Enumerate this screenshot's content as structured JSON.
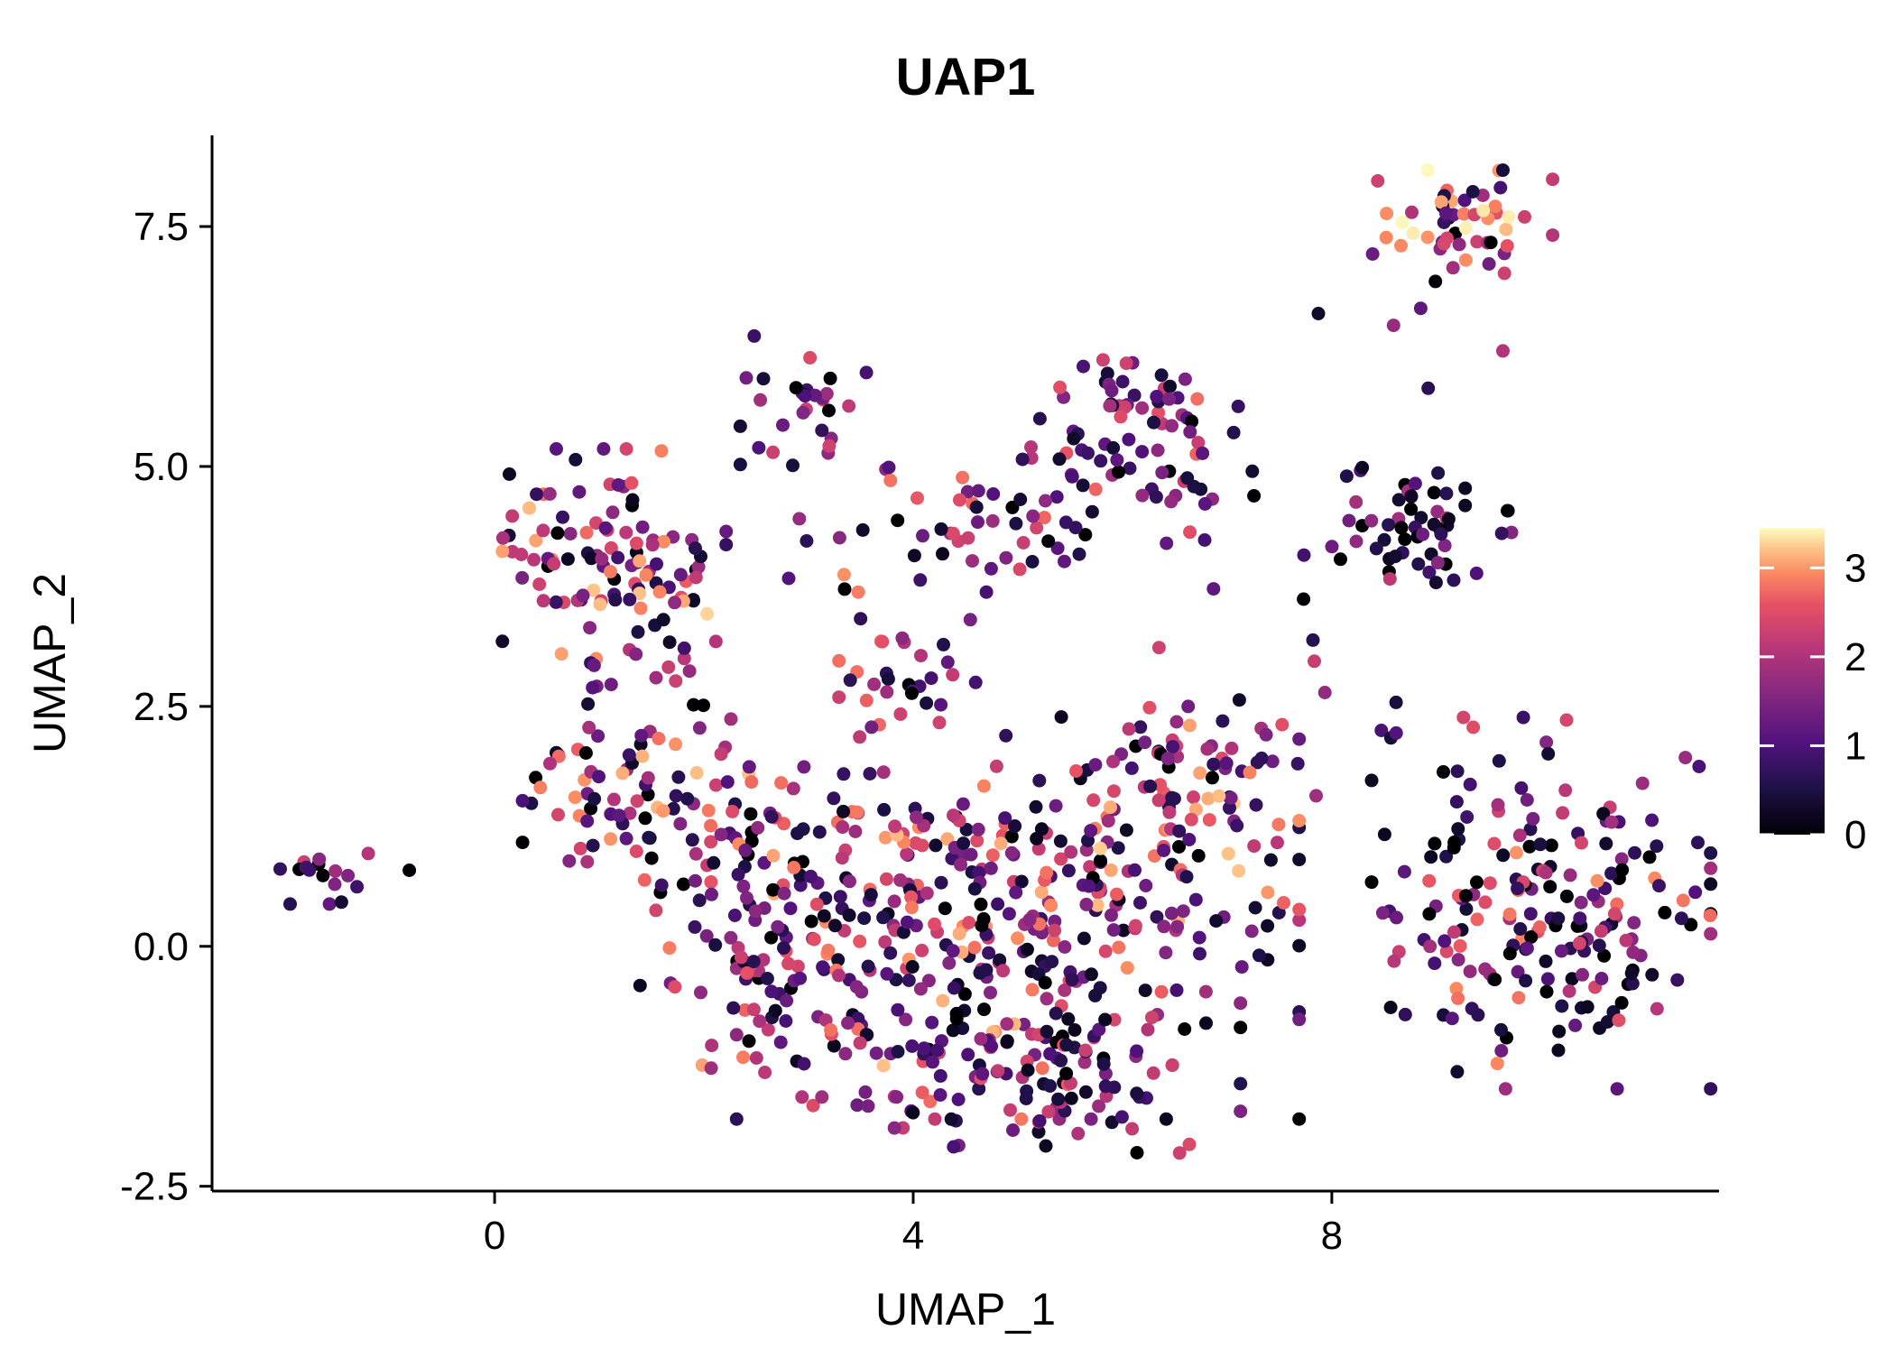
{
  "colors": {
    "background": "#ffffff",
    "axis": "#000000",
    "text": "#000000",
    "colorbar_tick": "#ffffff"
  },
  "chart_data": {
    "type": "scatter",
    "title": "UAP1",
    "xlabel": "UMAP_1",
    "ylabel": "UMAP_2",
    "xlim": [
      -2.7,
      11.7
    ],
    "ylim": [
      -2.55,
      8.45
    ],
    "xticks": [
      0,
      4,
      8
    ],
    "xtick_labels": [
      "0",
      "4",
      "8"
    ],
    "yticks": [
      -2.5,
      0.0,
      2.5,
      5.0,
      7.5
    ],
    "ytick_labels": [
      "-2.5",
      "0.0",
      "2.5",
      "5.0",
      "7.5"
    ],
    "grid": false,
    "legend_position": "right",
    "point_radius_px": 7.5,
    "color_scale": {
      "name": "magma",
      "domain": [
        0,
        3.45
      ],
      "ticks": [
        0,
        1,
        2,
        3
      ],
      "tick_labels": [
        "0",
        "1",
        "2",
        "3"
      ],
      "stops": [
        [
          0.0,
          "#000004"
        ],
        [
          0.15,
          "#1d1147"
        ],
        [
          0.3,
          "#51127c"
        ],
        [
          0.45,
          "#822681"
        ],
        [
          0.6,
          "#b63679"
        ],
        [
          0.75,
          "#e65164"
        ],
        [
          0.85,
          "#fb8861"
        ],
        [
          0.93,
          "#fec287"
        ],
        [
          1.0,
          "#fcfdbf"
        ]
      ]
    },
    "clusters": [
      {
        "name": "far-left-small",
        "cx": -1.62,
        "cy": 0.72,
        "sx": 0.22,
        "sy": 0.13,
        "n": 16,
        "expr": {
          "p_zero": 0.12,
          "min": 0.3,
          "max": 2.3,
          "skew": 1.2
        }
      },
      {
        "name": "far-left-outlier",
        "cx": -0.8,
        "cy": 0.82,
        "sx": 0.03,
        "sy": 0.02,
        "n": 1,
        "expr": {
          "p_zero": 1.0,
          "min": 0.0,
          "max": 0.0,
          "skew": 1.0
        }
      },
      {
        "name": "left-upper",
        "cx": 1.15,
        "cy": 3.85,
        "sx": 0.5,
        "sy": 0.62,
        "n": 120,
        "expr": {
          "p_zero": 0.05,
          "min": 0.2,
          "max": 3.3,
          "skew": 1.0
        }
      },
      {
        "name": "left-lower-arm",
        "cx": 1.45,
        "cy": 1.45,
        "sx": 0.55,
        "sy": 0.5,
        "n": 85,
        "expr": {
          "p_zero": 0.07,
          "min": 0.2,
          "max": 3.2,
          "skew": 1.1
        }
      },
      {
        "name": "top-small",
        "cx": 2.95,
        "cy": 5.65,
        "sx": 0.28,
        "sy": 0.33,
        "n": 30,
        "expr": {
          "p_zero": 0.1,
          "min": 0.3,
          "max": 2.6,
          "skew": 1.0
        }
      },
      {
        "name": "top-mid",
        "cx": 6.2,
        "cy": 5.5,
        "sx": 0.5,
        "sy": 0.38,
        "n": 75,
        "expr": {
          "p_zero": 0.06,
          "min": 0.3,
          "max": 2.8,
          "skew": 1.5
        }
      },
      {
        "name": "upper-band",
        "cx": 4.9,
        "cy": 4.4,
        "sx": 1.25,
        "sy": 0.33,
        "n": 65,
        "expr": {
          "p_zero": 0.08,
          "min": 0.2,
          "max": 3.0,
          "skew": 1.2
        }
      },
      {
        "name": "mid-clump",
        "cx": 4.0,
        "cy": 2.85,
        "sx": 0.33,
        "sy": 0.3,
        "n": 28,
        "expr": {
          "p_zero": 0.05,
          "min": 0.3,
          "max": 2.8,
          "skew": 1.0
        }
      },
      {
        "name": "center-main",
        "cx": 5.0,
        "cy": 0.35,
        "sx": 1.25,
        "sy": 1.0,
        "n": 320,
        "expr": {
          "p_zero": 0.08,
          "min": 0.2,
          "max": 3.2,
          "skew": 1.25
        }
      },
      {
        "name": "center-bottom",
        "cx": 5.3,
        "cy": -1.25,
        "sx": 0.85,
        "sy": 0.42,
        "n": 100,
        "expr": {
          "p_zero": 0.09,
          "min": 0.2,
          "max": 2.8,
          "skew": 1.3
        }
      },
      {
        "name": "center-left",
        "cx": 3.3,
        "cy": 0.15,
        "sx": 0.65,
        "sy": 0.8,
        "n": 100,
        "expr": {
          "p_zero": 0.08,
          "min": 0.2,
          "max": 3.0,
          "skew": 1.2
        }
      },
      {
        "name": "center-upper-right",
        "cx": 6.6,
        "cy": 1.8,
        "sx": 0.5,
        "sy": 0.5,
        "n": 65,
        "expr": {
          "p_zero": 0.06,
          "min": 0.3,
          "max": 3.3,
          "skew": 0.95
        }
      },
      {
        "name": "center-left-edge",
        "cx": 2.25,
        "cy": 0.1,
        "sx": 0.4,
        "sy": 0.75,
        "n": 60,
        "expr": {
          "p_zero": 0.08,
          "min": 0.2,
          "max": 3.2,
          "skew": 1.1
        }
      },
      {
        "name": "right-mid-dark",
        "cx": 8.9,
        "cy": 4.35,
        "sx": 0.38,
        "sy": 0.33,
        "n": 55,
        "expr": {
          "p_zero": 0.2,
          "min": 0.2,
          "max": 2.2,
          "skew": 1.7
        }
      },
      {
        "name": "top-right",
        "cx": 9.25,
        "cy": 7.55,
        "sx": 0.4,
        "sy": 0.25,
        "n": 52,
        "expr": {
          "p_zero": 0.07,
          "min": 0.4,
          "max": 3.45,
          "skew": 0.8
        }
      },
      {
        "name": "top-right-stragglers",
        "cx": 8.9,
        "cy": 6.7,
        "sx": 0.55,
        "sy": 0.45,
        "n": 6,
        "expr": {
          "p_zero": 0.25,
          "min": 0.3,
          "max": 2.2,
          "skew": 1.3
        }
      },
      {
        "name": "far-right",
        "cx": 10.1,
        "cy": 0.45,
        "sx": 0.8,
        "sy": 0.9,
        "n": 200,
        "expr": {
          "p_zero": 0.14,
          "min": 0.2,
          "max": 3.0,
          "skew": 1.35
        }
      },
      {
        "name": "sparse-bridge",
        "cx": 7.8,
        "cy": 2.9,
        "sx": 0.9,
        "sy": 1.3,
        "n": 22,
        "expr": {
          "p_zero": 0.1,
          "min": 0.2,
          "max": 2.8,
          "skew": 1.2
        }
      }
    ]
  }
}
